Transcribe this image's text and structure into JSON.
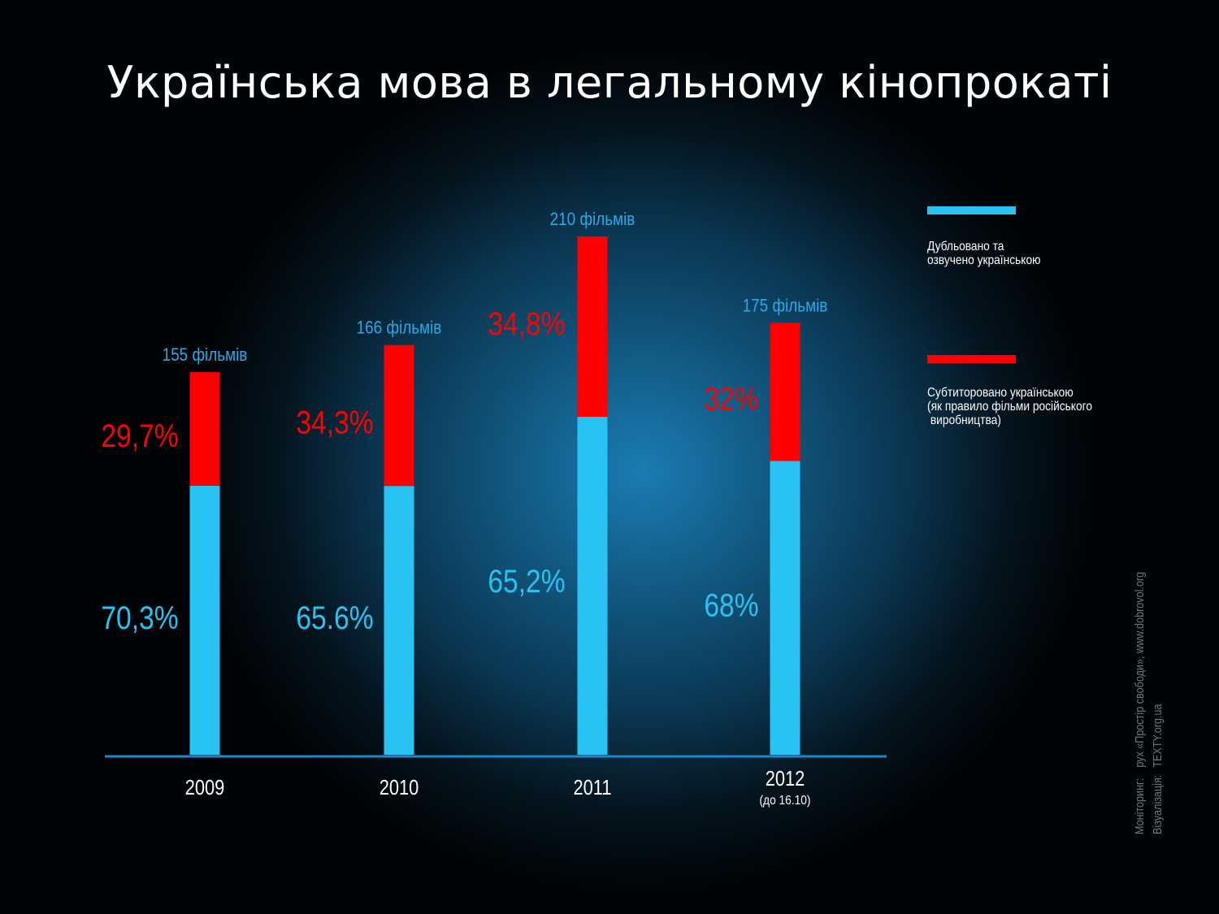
{
  "title": "Українська мова в легальному кінопрокаті",
  "legend": {
    "dubbed": "Дубльовано та\nозвучено українською",
    "subtitled": "Субтиторовано українською\n(як правило фільми російського\n виробництва)"
  },
  "credits": {
    "monitoring_label": "Моніторинг:",
    "monitoring_value": "рух «Простір свободи», www.dobrovol.org",
    "viz_label": "Візуалізація:",
    "viz_value": "TEXTY.org.ua"
  },
  "colors": {
    "dubbed": "#29c3f3",
    "subtitled": "#ff0000",
    "film_count": "#29aae6",
    "axis": "#1f87c7"
  },
  "chart_data": {
    "type": "bar",
    "stacked": true,
    "categories": [
      "2009",
      "2010",
      "2011",
      "2012"
    ],
    "category_notes": [
      "",
      "",
      "",
      "(до 16.10)"
    ],
    "film_counts": [
      155,
      166,
      210,
      175
    ],
    "film_count_labels": [
      "155 фільмів",
      "166 фільмів",
      "210  фільмів",
      "175  фільмів"
    ],
    "series": [
      {
        "name": "Дубльовано та озвучено українською",
        "values": [
          70.3,
          65.6,
          65.2,
          68
        ],
        "labels": [
          "70,3%",
          "65.6%",
          "65,2%",
          "68%"
        ]
      },
      {
        "name": "Субтиторовано українською (як правило фільми російського виробництва)",
        "values": [
          29.7,
          34.3,
          34.8,
          32
        ],
        "labels": [
          "29,7%",
          "34,3%",
          "34,8%",
          "32%"
        ]
      }
    ],
    "bar_height_encodes": "film_counts",
    "grid": false,
    "legend_position": "right"
  }
}
